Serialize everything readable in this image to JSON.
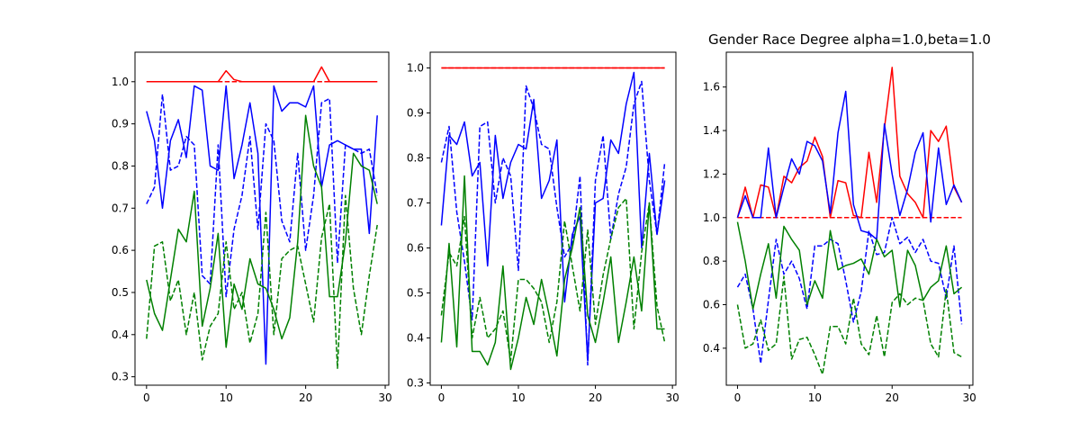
{
  "figure": {
    "background": "#ffffff"
  },
  "colors": {
    "red": "#ff0000",
    "blue": "#0000ff",
    "green": "#008000"
  },
  "chart_data": [
    {
      "type": "line",
      "title": "",
      "xlim": [
        -1.45,
        30.45
      ],
      "ylim": [
        0.28,
        1.07
      ],
      "xticks": [
        0,
        10,
        20,
        30
      ],
      "yticks": [
        0.3,
        0.4,
        0.5,
        0.6,
        0.7,
        0.8,
        0.9,
        1.0
      ],
      "ytick_decimals": 1,
      "series": [
        {
          "color": "red",
          "style": "dashed",
          "values": [
            1.0,
            1.0,
            1.0,
            1.0,
            1.0,
            1.0,
            1.0,
            1.0,
            1.0,
            1.0,
            1.0,
            1.0,
            1.0,
            1.0,
            1.0,
            1.0,
            1.0,
            1.0,
            1.0,
            1.0,
            1.0,
            1.0,
            1.0,
            1.0,
            1.0,
            1.0,
            1.0,
            1.0,
            1.0,
            1.0
          ]
        },
        {
          "color": "red",
          "style": "solid",
          "values": [
            1.0,
            1.0,
            1.0,
            1.0,
            1.0,
            1.0,
            1.0,
            1.0,
            1.0,
            1.0,
            1.026,
            1.005,
            1.0,
            1.0,
            1.0,
            1.0,
            1.0,
            1.0,
            1.0,
            1.0,
            1.0,
            1.0,
            1.035,
            1.0,
            1.0,
            1.0,
            1.0,
            1.0,
            1.0,
            1.0
          ]
        },
        {
          "color": "blue",
          "style": "solid",
          "values": [
            0.93,
            0.86,
            0.7,
            0.86,
            0.91,
            0.82,
            0.99,
            0.98,
            0.8,
            0.79,
            0.99,
            0.77,
            0.85,
            0.95,
            0.83,
            0.33,
            0.99,
            0.93,
            0.95,
            0.95,
            0.94,
            0.99,
            0.75,
            0.85,
            0.86,
            0.85,
            0.84,
            0.84,
            0.64,
            0.92
          ]
        },
        {
          "color": "blue",
          "style": "dashed",
          "values": [
            0.71,
            0.75,
            0.97,
            0.79,
            0.8,
            0.87,
            0.85,
            0.54,
            0.52,
            0.85,
            0.49,
            0.65,
            0.73,
            0.87,
            0.65,
            0.9,
            0.86,
            0.67,
            0.62,
            0.83,
            0.6,
            0.73,
            0.95,
            0.96,
            0.57,
            0.85,
            0.84,
            0.83,
            0.84,
            0.73
          ]
        },
        {
          "color": "green",
          "style": "solid",
          "values": [
            0.53,
            0.45,
            0.41,
            0.53,
            0.65,
            0.62,
            0.74,
            0.42,
            0.51,
            0.64,
            0.37,
            0.52,
            0.46,
            0.58,
            0.52,
            0.51,
            0.46,
            0.39,
            0.44,
            0.62,
            0.92,
            0.8,
            0.75,
            0.49,
            0.49,
            0.62,
            0.83,
            0.8,
            0.79,
            0.71
          ]
        },
        {
          "color": "green",
          "style": "dashed",
          "values": [
            0.39,
            0.61,
            0.62,
            0.48,
            0.53,
            0.4,
            0.5,
            0.34,
            0.42,
            0.45,
            0.62,
            0.46,
            0.5,
            0.38,
            0.45,
            0.69,
            0.4,
            0.58,
            0.6,
            0.61,
            0.52,
            0.43,
            0.63,
            0.71,
            0.32,
            0.73,
            0.51,
            0.4,
            0.54,
            0.66
          ]
        }
      ]
    },
    {
      "type": "line",
      "title": "",
      "xlim": [
        -1.45,
        30.45
      ],
      "ylim": [
        0.295,
        1.035
      ],
      "xticks": [
        0,
        10,
        20,
        30
      ],
      "yticks": [
        0.3,
        0.4,
        0.5,
        0.6,
        0.7,
        0.8,
        0.9,
        1.0
      ],
      "ytick_decimals": 1,
      "series": [
        {
          "color": "red",
          "style": "dashed",
          "values": [
            1.0,
            1.0,
            1.0,
            1.0,
            1.0,
            1.0,
            1.0,
            1.0,
            1.0,
            1.0,
            1.0,
            1.0,
            1.0,
            1.0,
            1.0,
            1.0,
            1.0,
            1.0,
            1.0,
            1.0,
            1.0,
            1.0,
            1.0,
            1.0,
            1.0,
            1.0,
            1.0,
            1.0,
            1.0,
            1.0
          ]
        },
        {
          "color": "red",
          "style": "solid",
          "values": [
            1.0,
            1.0,
            1.0,
            1.0,
            1.0,
            1.0,
            1.0,
            1.0,
            1.0,
            1.0,
            1.0,
            1.0,
            1.0,
            1.0,
            1.0,
            1.0,
            1.0,
            1.0,
            1.0,
            1.0,
            1.0,
            1.0,
            1.0,
            1.0,
            1.0,
            1.0,
            1.0,
            1.0,
            1.0,
            1.0
          ]
        },
        {
          "color": "blue",
          "style": "solid",
          "values": [
            0.65,
            0.85,
            0.83,
            0.88,
            0.76,
            0.79,
            0.56,
            0.85,
            0.71,
            0.79,
            0.83,
            0.82,
            0.93,
            0.71,
            0.75,
            0.84,
            0.48,
            0.63,
            0.67,
            0.35,
            0.7,
            0.71,
            0.84,
            0.81,
            0.92,
            0.99,
            0.6,
            0.81,
            0.63,
            0.75
          ]
        },
        {
          "color": "blue",
          "style": "dashed",
          "values": [
            0.79,
            0.87,
            0.68,
            0.57,
            0.44,
            0.87,
            0.88,
            0.7,
            0.8,
            0.76,
            0.55,
            0.96,
            0.91,
            0.83,
            0.82,
            0.69,
            0.58,
            0.61,
            0.76,
            0.34,
            0.75,
            0.85,
            0.62,
            0.72,
            0.78,
            0.92,
            0.97,
            0.75,
            0.63,
            0.79
          ]
        },
        {
          "color": "green",
          "style": "solid",
          "values": [
            0.39,
            0.61,
            0.38,
            0.76,
            0.37,
            0.37,
            0.34,
            0.39,
            0.56,
            0.33,
            0.4,
            0.49,
            0.43,
            0.53,
            0.45,
            0.36,
            0.53,
            0.6,
            0.69,
            0.45,
            0.39,
            0.48,
            0.58,
            0.39,
            0.48,
            0.58,
            0.46,
            0.7,
            0.42,
            0.42
          ]
        },
        {
          "color": "green",
          "style": "dashed",
          "values": [
            0.45,
            0.59,
            0.56,
            0.67,
            0.4,
            0.49,
            0.4,
            0.42,
            0.46,
            0.35,
            0.53,
            0.53,
            0.51,
            0.48,
            0.39,
            0.48,
            0.66,
            0.56,
            0.46,
            0.64,
            0.43,
            0.54,
            0.62,
            0.69,
            0.71,
            0.42,
            0.59,
            0.7,
            0.47,
            0.39
          ]
        }
      ]
    },
    {
      "type": "line",
      "title": "Gender Race Degree alpha=1.0,beta=1.0",
      "xlim": [
        -1.45,
        30.45
      ],
      "ylim": [
        0.23,
        1.76
      ],
      "xticks": [
        0,
        10,
        20,
        30
      ],
      "yticks": [
        0.4,
        0.6,
        0.8,
        1.0,
        1.2,
        1.4,
        1.6
      ],
      "ytick_decimals": 1,
      "series": [
        {
          "color": "red",
          "style": "dashed",
          "values": [
            1.0,
            1.0,
            1.0,
            1.0,
            1.0,
            1.0,
            1.0,
            1.0,
            1.0,
            1.0,
            1.0,
            1.0,
            1.0,
            1.0,
            1.0,
            1.0,
            1.0,
            1.0,
            1.0,
            1.0,
            1.0,
            1.0,
            1.0,
            1.0,
            1.0,
            1.0,
            1.0,
            1.0,
            1.0,
            1.0
          ]
        },
        {
          "color": "red",
          "style": "solid",
          "values": [
            1.0,
            1.14,
            1.0,
            1.15,
            1.14,
            1.0,
            1.19,
            1.16,
            1.23,
            1.26,
            1.37,
            1.28,
            1.0,
            1.17,
            1.16,
            1.01,
            1.0,
            1.3,
            1.07,
            1.41,
            1.69,
            1.19,
            1.11,
            1.07,
            1.0,
            1.4,
            1.35,
            1.42,
            1.14,
            1.07
          ]
        },
        {
          "color": "blue",
          "style": "solid",
          "values": [
            1.0,
            1.1,
            1.0,
            1.0,
            1.32,
            1.0,
            1.14,
            1.27,
            1.2,
            1.35,
            1.33,
            1.26,
            1.02,
            1.39,
            1.58,
            1.06,
            0.94,
            0.93,
            0.9,
            1.43,
            1.2,
            1.01,
            1.13,
            1.3,
            1.39,
            0.98,
            1.32,
            1.06,
            1.15,
            1.07
          ]
        },
        {
          "color": "blue",
          "style": "dashed",
          "values": [
            0.68,
            0.74,
            0.58,
            0.33,
            0.62,
            0.9,
            0.74,
            0.8,
            0.72,
            0.58,
            0.87,
            0.87,
            0.9,
            0.88,
            0.71,
            0.52,
            0.66,
            0.94,
            0.83,
            0.84,
            1.0,
            0.88,
            0.91,
            0.84,
            0.9,
            0.8,
            0.79,
            0.63,
            0.87,
            0.51
          ]
        },
        {
          "color": "green",
          "style": "solid",
          "values": [
            0.98,
            0.8,
            0.58,
            0.74,
            0.88,
            0.63,
            0.96,
            0.9,
            0.85,
            0.6,
            0.71,
            0.63,
            0.94,
            0.76,
            0.78,
            0.79,
            0.81,
            0.74,
            0.9,
            0.82,
            0.85,
            0.59,
            0.85,
            0.78,
            0.62,
            0.68,
            0.71,
            0.87,
            0.65,
            0.68
          ]
        },
        {
          "color": "green",
          "style": "dashed",
          "values": [
            0.6,
            0.4,
            0.42,
            0.53,
            0.39,
            0.42,
            0.73,
            0.35,
            0.44,
            0.45,
            0.37,
            0.28,
            0.5,
            0.5,
            0.42,
            0.63,
            0.42,
            0.37,
            0.55,
            0.36,
            0.61,
            0.65,
            0.6,
            0.63,
            0.62,
            0.42,
            0.36,
            0.67,
            0.38,
            0.36
          ]
        }
      ]
    }
  ]
}
